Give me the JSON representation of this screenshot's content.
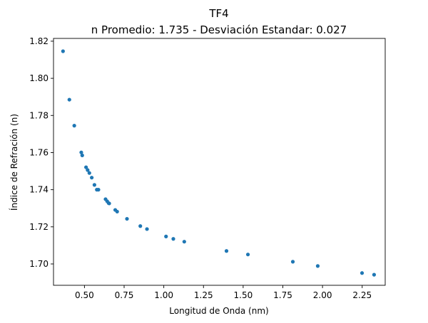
{
  "colors": {
    "point": "#1f77b4",
    "axis": "#000000",
    "background": "#ffffff"
  },
  "chart_data": {
    "type": "scatter",
    "title": "TF4",
    "subtitle": "n Promedio: 1.735 - Desviación Estandar: 0.027",
    "xlabel": "Longitud de Onda (nm)",
    "ylabel": "Índice de Refración (n)",
    "xlim": [
      0.305,
      2.395
    ],
    "ylim": [
      1.6885,
      1.8215
    ],
    "grid": false,
    "legend": "none",
    "x_ticks": [
      {
        "value": 0.5,
        "label": "0.50"
      },
      {
        "value": 0.75,
        "label": "0.75"
      },
      {
        "value": 1.0,
        "label": "1.00"
      },
      {
        "value": 1.25,
        "label": "1.25"
      },
      {
        "value": 1.5,
        "label": "1.50"
      },
      {
        "value": 1.75,
        "label": "1.75"
      },
      {
        "value": 2.0,
        "label": "2.00"
      },
      {
        "value": 2.25,
        "label": "2.25"
      }
    ],
    "y_ticks": [
      {
        "value": 1.7,
        "label": "1.70"
      },
      {
        "value": 1.72,
        "label": "1.72"
      },
      {
        "value": 1.74,
        "label": "1.74"
      },
      {
        "value": 1.76,
        "label": "1.76"
      },
      {
        "value": 1.78,
        "label": "1.78"
      },
      {
        "value": 1.8,
        "label": "1.80"
      },
      {
        "value": 1.82,
        "label": "1.82"
      }
    ],
    "points": [
      {
        "x": 0.365,
        "y": 1.8146
      },
      {
        "x": 0.405,
        "y": 1.7885
      },
      {
        "x": 0.436,
        "y": 1.7745
      },
      {
        "x": 0.48,
        "y": 1.7601
      },
      {
        "x": 0.486,
        "y": 1.7585
      },
      {
        "x": 0.51,
        "y": 1.7521
      },
      {
        "x": 0.52,
        "y": 1.7506
      },
      {
        "x": 0.531,
        "y": 1.749
      },
      {
        "x": 0.546,
        "y": 1.7465
      },
      {
        "x": 0.563,
        "y": 1.7426
      },
      {
        "x": 0.578,
        "y": 1.74
      },
      {
        "x": 0.588,
        "y": 1.74
      },
      {
        "x": 0.633,
        "y": 1.7349
      },
      {
        "x": 0.643,
        "y": 1.7338
      },
      {
        "x": 0.652,
        "y": 1.7328
      },
      {
        "x": 0.656,
        "y": 1.7326
      },
      {
        "x": 0.694,
        "y": 1.7291
      },
      {
        "x": 0.706,
        "y": 1.7282
      },
      {
        "x": 0.768,
        "y": 1.7243
      },
      {
        "x": 0.852,
        "y": 1.7204
      },
      {
        "x": 0.894,
        "y": 1.7188
      },
      {
        "x": 1.014,
        "y": 1.7148
      },
      {
        "x": 1.06,
        "y": 1.7135
      },
      {
        "x": 1.129,
        "y": 1.712
      },
      {
        "x": 1.395,
        "y": 1.707
      },
      {
        "x": 1.53,
        "y": 1.7051
      },
      {
        "x": 1.813,
        "y": 1.7012
      },
      {
        "x": 1.97,
        "y": 1.6989
      },
      {
        "x": 2.249,
        "y": 1.6951
      },
      {
        "x": 2.325,
        "y": 1.6942
      }
    ]
  }
}
